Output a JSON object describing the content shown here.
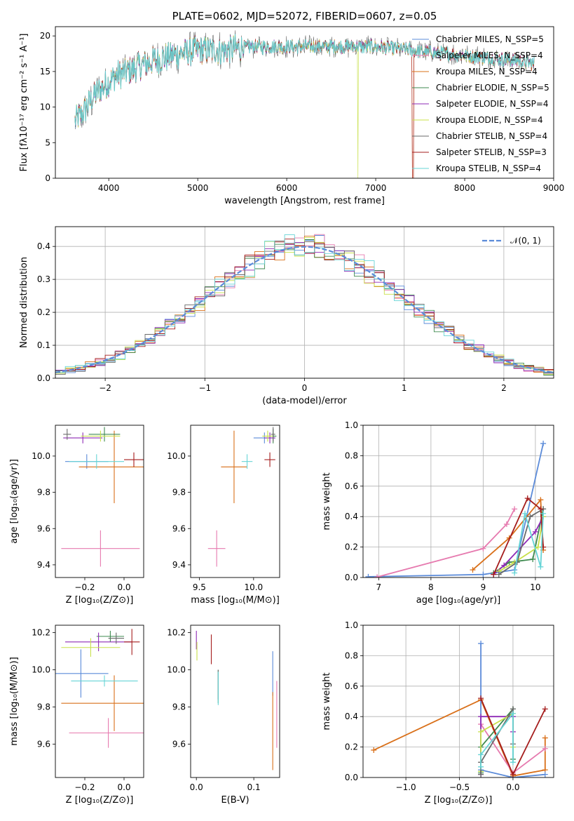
{
  "colors": {
    "chabrier_miles": "#5b8bd9",
    "salpeter_miles": "#e67aaf",
    "kroupa_miles": "#d9701a",
    "chabrier_elodie": "#3e8a4f",
    "salpeter_elodie": "#8e2ab5",
    "kroupa_elodie": "#c8e04a",
    "chabrier_stelib": "#6a6a6a",
    "salpeter_stelib": "#a51d1d",
    "kroupa_stelib": "#66d4d6",
    "gaussian": "#5b8bd9"
  },
  "chart_data": [
    {
      "id": "spectrum",
      "type": "line",
      "title": "PLATE=0602, MJD=52072, FIBERID=0607, z=0.05",
      "xlabel": "wavelength [Angstrom, rest frame]",
      "ylabel": "Flux [fλ10⁻¹⁷ erg cm⁻² s⁻¹ A⁻¹]",
      "xlim": [
        3400,
        9000
      ],
      "ylim": [
        0,
        21.3
      ],
      "xticks": [
        "4000",
        "5000",
        "6000",
        "7000",
        "8000",
        "9000"
      ],
      "yticks": [
        "0",
        "5",
        "10",
        "15",
        "20"
      ],
      "legend_position": "right",
      "legend": [
        "Chabrier MILES, N_SSP=5",
        "Salpeter MILES, N_SSP=4",
        "Kroupa MILES, N_SSP=4",
        "Chabrier ELODIE, N_SSP=5",
        "Salpeter ELODIE, N_SSP=4",
        "Kroupa ELODIE, N_SSP=4",
        "Chabrier STELIB, N_SSP=4",
        "Salpeter STELIB, N_SSP=3",
        "Kroupa STELIB, N_SSP=4"
      ],
      "continuum": {
        "x": [
          3620,
          3700,
          3800,
          3900,
          4000,
          4100,
          4300,
          4500,
          4800,
          5000,
          5300,
          5600,
          6000,
          6300,
          6600,
          7000,
          7400,
          7800,
          8200,
          8600,
          8800
        ],
        "y": [
          8,
          9,
          11,
          12.5,
          13.5,
          14.5,
          15.5,
          16.5,
          17.5,
          18,
          18,
          18.5,
          18.5,
          18.5,
          18.5,
          18.5,
          18,
          17.5,
          17,
          16.5,
          16
        ]
      },
      "data_range": [
        3620,
        8780
      ],
      "gap_drop_wavelength": 6800,
      "cut_wavelength": 7420
    },
    {
      "id": "residuals",
      "type": "histogram",
      "xlabel": "(data-model)/error",
      "ylabel": "Normed distribution",
      "xlim": [
        -2.5,
        2.5
      ],
      "ylim": [
        0,
        0.46
      ],
      "xticks": [
        "−2",
        "−1",
        "0",
        "1",
        "2"
      ],
      "yticks": [
        "0.0",
        "0.1",
        "0.2",
        "0.3",
        "0.4"
      ],
      "bins": 50,
      "bin_range": [
        -2.5,
        2.5
      ],
      "series_count": 9,
      "gaussian_label": "𝒩(0, 1)",
      "legend_position": "top-right",
      "grid": true
    },
    {
      "id": "age_vs_z",
      "type": "errorbar",
      "xlabel": "Z [log₁₀(Z/Z⊙)]",
      "ylabel": "age  [log₁₀(age/yr)]",
      "xlim": [
        -0.35,
        0.1
      ],
      "ylim": [
        9.33,
        10.17
      ],
      "xticks": [
        "−0.2",
        "0.0"
      ],
      "yticks": [
        "9.4",
        "9.6",
        "9.8",
        "10.0"
      ],
      "points": [
        {
          "series": "chabrier_miles",
          "x": -0.19,
          "xerr": 0.11,
          "y": 9.97,
          "yerr": 0.04
        },
        {
          "series": "salpeter_miles",
          "x": -0.12,
          "xerr": 0.2,
          "y": 9.49,
          "yerr": 0.1
        },
        {
          "series": "kroupa_miles",
          "x": -0.05,
          "xerr": 0.18,
          "y": 9.94,
          "yerr": 0.2
        },
        {
          "series": "chabrier_elodie",
          "x": -0.1,
          "xerr": 0.08,
          "y": 10.12,
          "yerr": 0.04
        },
        {
          "series": "salpeter_elodie",
          "x": -0.21,
          "xerr": 0.1,
          "y": 10.1,
          "yerr": 0.03
        },
        {
          "series": "kroupa_elodie",
          "x": -0.12,
          "xerr": 0.1,
          "y": 10.11,
          "yerr": 0.03
        },
        {
          "series": "chabrier_stelib",
          "x": -0.29,
          "xerr": 0.02,
          "y": 10.12,
          "yerr": 0.03
        },
        {
          "series": "salpeter_stelib",
          "x": 0.05,
          "xerr": 0.05,
          "y": 9.98,
          "yerr": 0.04
        },
        {
          "series": "kroupa_stelib",
          "x": -0.14,
          "xerr": 0.14,
          "y": 9.97,
          "yerr": 0.04
        }
      ]
    },
    {
      "id": "age_vs_mass",
      "type": "errorbar",
      "xlabel": "mass [log₁₀(M/M⊙)]",
      "ylabel": "",
      "xlim": [
        9.42,
        10.24
      ],
      "ylim": [
        9.33,
        10.17
      ],
      "xticks": [
        "9.5",
        "10.0"
      ],
      "yticks": [
        "9.4",
        "9.6",
        "9.8",
        "10.0"
      ],
      "points": [
        {
          "series": "chabrier_miles",
          "x": 10.1,
          "xerr": 0.1,
          "y": 10.1,
          "yerr": 0.03
        },
        {
          "series": "salpeter_miles",
          "x": 9.66,
          "xerr": 0.08,
          "y": 9.49,
          "yerr": 0.1
        },
        {
          "series": "kroupa_miles",
          "x": 9.82,
          "xerr": 0.12,
          "y": 9.94,
          "yerr": 0.2
        },
        {
          "series": "chabrier_elodie",
          "x": 10.18,
          "xerr": 0.03,
          "y": 10.11,
          "yerr": 0.04
        },
        {
          "series": "salpeter_elodie",
          "x": 10.15,
          "xerr": 0.05,
          "y": 10.1,
          "yerr": 0.03
        },
        {
          "series": "kroupa_elodie",
          "x": 10.13,
          "xerr": 0.05,
          "y": 10.11,
          "yerr": 0.03
        },
        {
          "series": "chabrier_stelib",
          "x": 10.18,
          "xerr": 0.02,
          "y": 10.12,
          "yerr": 0.04
        },
        {
          "series": "salpeter_stelib",
          "x": 10.15,
          "xerr": 0.05,
          "y": 9.98,
          "yerr": 0.04
        },
        {
          "series": "kroupa_stelib",
          "x": 9.94,
          "xerr": 0.05,
          "y": 9.97,
          "yerr": 0.04
        }
      ]
    },
    {
      "id": "mass_weight_vs_age",
      "type": "line",
      "xlabel": "age  [log₁₀(age/yr)]",
      "ylabel": "mass weight",
      "xlim": [
        6.7,
        10.35
      ],
      "ylim": [
        0,
        1
      ],
      "xticks": [
        "7",
        "8",
        "9",
        "10"
      ],
      "yticks": [
        "0.0",
        "0.2",
        "0.4",
        "0.6",
        "0.8",
        "1.0"
      ],
      "grid": true,
      "series": [
        {
          "key": "chabrier_miles",
          "x": [
            6.8,
            9.0,
            9.6,
            10.15
          ],
          "y": [
            0.005,
            0.02,
            0.05,
            0.88
          ]
        },
        {
          "key": "salpeter_miles",
          "x": [
            6.97,
            9.0,
            9.45,
            9.6
          ],
          "y": [
            0.003,
            0.19,
            0.35,
            0.45
          ]
        },
        {
          "key": "kroupa_miles",
          "x": [
            8.8,
            9.5,
            10.1,
            10.15
          ],
          "y": [
            0.05,
            0.26,
            0.51,
            0.18
          ]
        },
        {
          "key": "chabrier_elodie",
          "x": [
            9.2,
            9.5,
            9.95,
            10.15
          ],
          "y": [
            0.03,
            0.1,
            0.12,
            0.45
          ]
        },
        {
          "key": "salpeter_elodie",
          "x": [
            9.2,
            9.4,
            10.0,
            10.15
          ],
          "y": [
            0.02,
            0.08,
            0.3,
            0.4
          ]
        },
        {
          "key": "kroupa_elodie",
          "x": [
            9.3,
            9.6,
            10.05,
            10.15
          ],
          "y": [
            0.04,
            0.1,
            0.2,
            0.4
          ]
        },
        {
          "key": "chabrier_stelib",
          "x": [
            9.3,
            9.65,
            9.9,
            10.15
          ],
          "y": [
            0.02,
            0.1,
            0.4,
            0.45
          ]
        },
        {
          "key": "salpeter_stelib",
          "x": [
            9.2,
            9.85,
            10.1,
            10.15
          ],
          "y": [
            0.02,
            0.52,
            0.45,
            0.2
          ]
        },
        {
          "key": "kroupa_stelib",
          "x": [
            9.6,
            9.8,
            10.1,
            10.15
          ],
          "y": [
            0.03,
            0.42,
            0.07,
            0.42
          ]
        }
      ]
    },
    {
      "id": "mass_vs_z",
      "type": "errorbar",
      "xlabel": "Z [log₁₀(Z/Z⊙)]",
      "ylabel": "mass [log₁₀(M/M⊙)]",
      "xlim": [
        -0.35,
        0.1
      ],
      "ylim": [
        9.42,
        10.24
      ],
      "xticks": [
        "−0.2",
        "0.0"
      ],
      "yticks": [
        "9.6",
        "9.8",
        "10.0",
        "10.2"
      ],
      "points": [
        {
          "series": "chabrier_miles",
          "x": -0.22,
          "xerr": 0.14,
          "y": 9.98,
          "yerr": 0.13
        },
        {
          "series": "salpeter_miles",
          "x": -0.08,
          "xerr": 0.2,
          "y": 9.66,
          "yerr": 0.08
        },
        {
          "series": "kroupa_miles",
          "x": -0.05,
          "xerr": 0.27,
          "y": 9.82,
          "yerr": 0.15
        },
        {
          "series": "chabrier_elodie",
          "x": -0.07,
          "xerr": 0.07,
          "y": 10.18,
          "yerr": 0.03
        },
        {
          "series": "salpeter_elodie",
          "x": -0.13,
          "xerr": 0.17,
          "y": 10.15,
          "yerr": 0.05
        },
        {
          "series": "kroupa_elodie",
          "x": -0.17,
          "xerr": 0.15,
          "y": 10.12,
          "yerr": 0.05
        },
        {
          "series": "chabrier_stelib",
          "x": -0.04,
          "xerr": 0.04,
          "y": 10.17,
          "yerr": 0.03
        },
        {
          "series": "salpeter_stelib",
          "x": 0.04,
          "xerr": 0.04,
          "y": 10.15,
          "yerr": 0.07
        },
        {
          "series": "kroupa_stelib",
          "x": -0.1,
          "xerr": 0.17,
          "y": 9.94,
          "yerr": 0.03
        }
      ]
    },
    {
      "id": "mass_vs_ebv",
      "type": "errorbar",
      "xlabel": "E(B-V)",
      "ylabel": "",
      "xlim": [
        -0.01,
        0.145
      ],
      "ylim": [
        9.42,
        10.24
      ],
      "xticks": [
        "0.0",
        "0.1"
      ],
      "yticks": [
        "9.6",
        "9.8",
        "10.0",
        "10.2"
      ],
      "points": [
        {
          "series": "chabrier_miles",
          "x": 0.133,
          "xerr": 0,
          "y": 9.98,
          "yerr": 0.12
        },
        {
          "series": "salpeter_miles",
          "x": 0.14,
          "xerr": 0,
          "y": 9.76,
          "yerr": 0.18
        },
        {
          "series": "kroupa_miles",
          "x": 0.133,
          "xerr": 0,
          "y": 9.67,
          "yerr": 0.21
        },
        {
          "series": "chabrier_elodie",
          "x": 0.038,
          "xerr": 0,
          "y": 9.91,
          "yerr": 0.09
        },
        {
          "series": "salpeter_elodie",
          "x": 0.0,
          "xerr": 0,
          "y": 10.16,
          "yerr": 0.05
        },
        {
          "series": "kroupa_elodie",
          "x": 0.001,
          "xerr": 0,
          "y": 10.1,
          "yerr": 0.05
        },
        {
          "series": "chabrier_stelib",
          "x": 0.038,
          "xerr": 0,
          "y": 9.92,
          "yerr": 0.08
        },
        {
          "series": "salpeter_stelib",
          "x": 0.026,
          "xerr": 0,
          "y": 10.11,
          "yerr": 0.08
        },
        {
          "series": "kroupa_stelib",
          "x": 0.038,
          "xerr": 0,
          "y": 9.9,
          "yerr": 0.09
        }
      ]
    },
    {
      "id": "mass_weight_vs_z",
      "type": "line",
      "xlabel": "Z [log₁₀(Z/Z⊙)]",
      "ylabel": "mass weight",
      "xlim": [
        -1.4,
        0.38
      ],
      "ylim": [
        0,
        1
      ],
      "xticks": [
        "−1.0",
        "−0.5",
        "0.0"
      ],
      "yticks": [
        "0.0",
        "0.2",
        "0.4",
        "0.6",
        "0.8",
        "1.0"
      ],
      "grid": true,
      "series": [
        {
          "key": "kroupa_miles",
          "x": [
            -1.3,
            -0.3,
            0.0,
            0.3,
            0.3
          ],
          "y": [
            0.18,
            0.51,
            0.01,
            0.05,
            0.26
          ]
        },
        {
          "key": "chabrier_miles",
          "x": [
            -0.3,
            -0.3,
            0.0,
            0.3
          ],
          "y": [
            0.88,
            0.05,
            0.0,
            0.02
          ]
        },
        {
          "key": "salpeter_miles",
          "x": [
            -0.3,
            0.0,
            0.3
          ],
          "y": [
            0.35,
            0.03,
            0.19
          ]
        },
        {
          "key": "chabrier_elodie",
          "x": [
            -0.3,
            -0.3,
            0.0,
            0.0
          ],
          "y": [
            0.03,
            0.2,
            0.45,
            0.12
          ]
        },
        {
          "key": "salpeter_elodie",
          "x": [
            -0.3,
            -0.3,
            0.0,
            0.0
          ],
          "y": [
            0.02,
            0.4,
            0.4,
            0.3
          ]
        },
        {
          "key": "kroupa_elodie",
          "x": [
            -0.3,
            -0.3,
            0.0,
            0.0
          ],
          "y": [
            0.04,
            0.3,
            0.42,
            0.2
          ]
        },
        {
          "key": "chabrier_stelib",
          "x": [
            -0.3,
            -0.3,
            0.0,
            0.0
          ],
          "y": [
            0.02,
            0.1,
            0.45,
            0.22
          ]
        },
        {
          "key": "salpeter_stelib",
          "x": [
            -0.3,
            0.0,
            0.3
          ],
          "y": [
            0.52,
            0.02,
            0.45
          ]
        },
        {
          "key": "kroupa_stelib",
          "x": [
            -0.3,
            -0.3,
            0.0,
            0.0
          ],
          "y": [
            0.07,
            0.15,
            0.42,
            0.1
          ]
        }
      ]
    }
  ]
}
